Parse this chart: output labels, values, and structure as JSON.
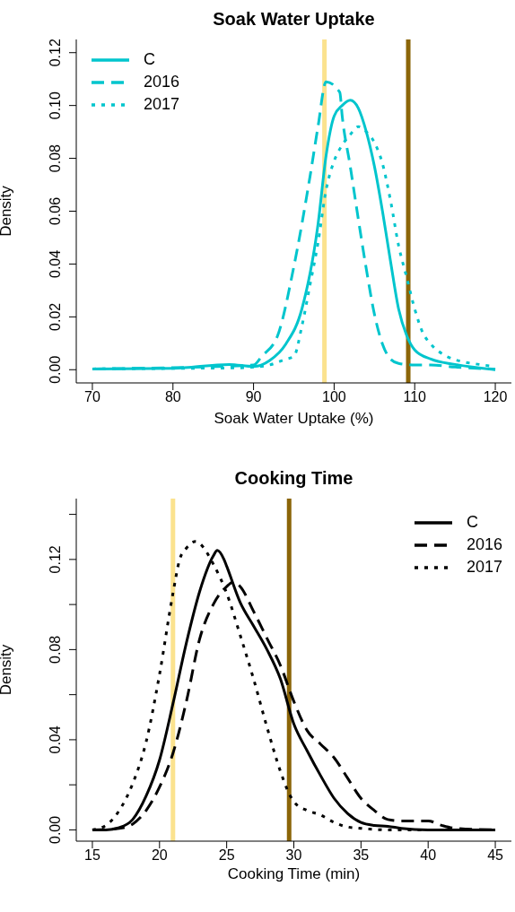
{
  "chart_data": [
    {
      "type": "line",
      "title": "Soak Water Uptake",
      "xlabel": "Soak Water Uptake (%)",
      "ylabel": "Density",
      "xlim": [
        68,
        122
      ],
      "xticks": [
        70,
        80,
        90,
        100,
        110,
        120
      ],
      "ylim": [
        -0.005,
        0.125
      ],
      "yticks": [
        {
          "value": 0,
          "label": "0.00"
        },
        {
          "value": 0.02,
          "label": "0.02"
        },
        {
          "value": 0.04,
          "label": "0.04"
        },
        {
          "value": 0.06,
          "label": "0.06"
        },
        {
          "value": 0.08,
          "label": "0.08"
        },
        {
          "value": 0.1,
          "label": "0.10"
        },
        {
          "value": 0.12,
          "label": "0.12"
        }
      ],
      "legend": "top left",
      "grid": false,
      "marker": "none",
      "series": [
        {
          "name": "C",
          "color": "#00c5cd",
          "line_style": "solid",
          "x": [
            70,
            80,
            87,
            90,
            92,
            94,
            96,
            98,
            99,
            100,
            101,
            102,
            103,
            104,
            105,
            106,
            107,
            108,
            109,
            110,
            112,
            115,
            120
          ],
          "values": [
            0.0003,
            0.0005,
            0.002,
            0.0012,
            0.0035,
            0.0097,
            0.023,
            0.055,
            0.081,
            0.096,
            0.1,
            0.102,
            0.099,
            0.09,
            0.077,
            0.06,
            0.041,
            0.023,
            0.013,
            0.0075,
            0.004,
            0.002,
            0
          ]
        },
        {
          "name": "2016",
          "color": "#00c5cd",
          "line_style": "dashed",
          "x": [
            70,
            80,
            90,
            91,
            93,
            95,
            97,
            98,
            99,
            100.7,
            101,
            102,
            103,
            104,
            105,
            106,
            107,
            108,
            110,
            112,
            115,
            120
          ],
          "values": [
            0.0003,
            0.0008,
            0.0018,
            0.005,
            0.013,
            0.039,
            0.073,
            0.092,
            0.109,
            0.105,
            0.096,
            0.077,
            0.057,
            0.038,
            0.021,
            0.0097,
            0.004,
            0.0024,
            0.0018,
            0.0018,
            0.001,
            0.0002
          ]
        },
        {
          "name": "2017",
          "color": "#00c5cd",
          "line_style": "dotted",
          "x": [
            70,
            80,
            88,
            90,
            92,
            94,
            95,
            96,
            97,
            98,
            99,
            100,
            101,
            102,
            103,
            104,
            105,
            106,
            107,
            108,
            109,
            110,
            111,
            112,
            114,
            116,
            118,
            120
          ],
          "values": [
            0.0003,
            0.0005,
            0.0007,
            0.001,
            0.0018,
            0.004,
            0.005,
            0.0165,
            0.032,
            0.048,
            0.068,
            0.079,
            0.085,
            0.089,
            0.092,
            0.09,
            0.086,
            0.078,
            0.064,
            0.047,
            0.035,
            0.023,
            0.014,
            0.0097,
            0.005,
            0.003,
            0.002,
            0.0012
          ]
        }
      ],
      "ref_lines": [
        {
          "axis": "x",
          "value": 98.8,
          "color": "#fbe28e"
        },
        {
          "axis": "x",
          "value": 109.2,
          "color": "#8b6508"
        }
      ]
    },
    {
      "type": "line",
      "title": "Cooking Time",
      "xlabel": "Cooking Time (min)",
      "ylabel": "Density",
      "xlim": [
        13.8,
        46.2
      ],
      "xticks": [
        15,
        20,
        25,
        30,
        35,
        40,
        45
      ],
      "ylim": [
        -0.005,
        0.147
      ],
      "yticks": [
        {
          "value": 0,
          "label": "0.00"
        },
        {
          "value": 0.02,
          "label": null
        },
        {
          "value": 0.04,
          "label": "0.04"
        },
        {
          "value": 0.06,
          "label": null
        },
        {
          "value": 0.08,
          "label": "0.08"
        },
        {
          "value": 0.1,
          "label": null
        },
        {
          "value": 0.12,
          "label": "0.12"
        },
        {
          "value": 0.14,
          "label": null
        }
      ],
      "legend": "top right",
      "grid": false,
      "marker": "none",
      "series": [
        {
          "name": "C",
          "color": "#000000",
          "line_style": "solid",
          "x": [
            15,
            16,
            17,
            18,
            19,
            20,
            21,
            22,
            23,
            24,
            24.3,
            24.8,
            25,
            26,
            27,
            28,
            29,
            30,
            31,
            32,
            33,
            34,
            35,
            36,
            37,
            38,
            40,
            45
          ],
          "values": [
            0,
            0,
            0.001,
            0.0046,
            0.015,
            0.031,
            0.056,
            0.083,
            0.106,
            0.1215,
            0.124,
            0.12,
            0.117,
            0.101,
            0.0905,
            0.08,
            0.067,
            0.047,
            0.035,
            0.024,
            0.014,
            0.0073,
            0.0033,
            0.002,
            0.0016,
            0.0007,
            0,
            0
          ]
        },
        {
          "name": "2016",
          "color": "#000000",
          "line_style": "dashed",
          "x": [
            15,
            17,
            18,
            19,
            20,
            21,
            22,
            23,
            24,
            25,
            25.5,
            26,
            27,
            28,
            29,
            30,
            31,
            32,
            33,
            34,
            35,
            36,
            37,
            38,
            39,
            40,
            41,
            42,
            45
          ],
          "values": [
            0,
            0.0007,
            0.0026,
            0.0086,
            0.019,
            0.034,
            0.057,
            0.085,
            0.1,
            0.108,
            0.11,
            0.108,
            0.097,
            0.085,
            0.073,
            0.057,
            0.044,
            0.038,
            0.032,
            0.023,
            0.014,
            0.0086,
            0.0046,
            0.004,
            0.004,
            0.004,
            0.002,
            0.0007,
            0
          ]
        },
        {
          "name": "2017",
          "color": "#000000",
          "line_style": "dotted",
          "x": [
            15,
            16,
            17,
            18,
            19,
            20,
            21,
            21.5,
            22,
            22.7,
            23,
            24,
            25,
            26,
            27,
            28,
            29,
            29.5,
            30,
            31,
            32,
            33,
            34,
            35,
            37,
            45
          ],
          "values": [
            0,
            0.002,
            0.0086,
            0.0205,
            0.039,
            0.069,
            0.105,
            0.12,
            0.125,
            0.128,
            0.127,
            0.118,
            0.105,
            0.0865,
            0.067,
            0.0456,
            0.026,
            0.018,
            0.0125,
            0.0086,
            0.0066,
            0.0033,
            0.0013,
            0.0007,
            0,
            0
          ]
        }
      ],
      "ref_lines": [
        {
          "axis": "x",
          "value": 21,
          "color": "#fbe28e"
        },
        {
          "axis": "x",
          "value": 29.65,
          "color": "#8b6508"
        }
      ]
    }
  ]
}
